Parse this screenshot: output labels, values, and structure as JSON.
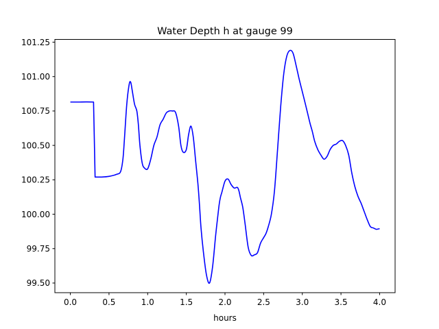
{
  "chart_data": {
    "type": "line",
    "title": "Water Depth h at gauge 99",
    "xlabel": "hours",
    "ylabel": "",
    "xlim": [
      -0.2,
      4.2
    ],
    "ylim": [
      99.43,
      101.27
    ],
    "xticks": [
      0.0,
      0.5,
      1.0,
      1.5,
      2.0,
      2.5,
      3.0,
      3.5,
      4.0
    ],
    "xtick_labels": [
      "0.0",
      "0.5",
      "1.0",
      "1.5",
      "2.0",
      "2.5",
      "3.0",
      "3.5",
      "4.0"
    ],
    "yticks": [
      99.5,
      99.75,
      100.0,
      100.25,
      100.5,
      100.75,
      101.0,
      101.25
    ],
    "ytick_labels": [
      "99.50",
      "99.75",
      "100.00",
      "100.25",
      "100.50",
      "100.75",
      "101.00",
      "101.25"
    ],
    "grid": false,
    "legend": "none",
    "series": [
      {
        "color": "#0000ff",
        "x": [
          0.0,
          0.1,
          0.2,
          0.3,
          0.31,
          0.32,
          0.4,
          0.5,
          0.6,
          0.65,
          0.68,
          0.7,
          0.73,
          0.76,
          0.78,
          0.8,
          0.83,
          0.86,
          0.88,
          0.9,
          0.93,
          0.96,
          1.0,
          1.04,
          1.08,
          1.12,
          1.16,
          1.2,
          1.24,
          1.28,
          1.32,
          1.36,
          1.4,
          1.43,
          1.46,
          1.5,
          1.53,
          1.56,
          1.59,
          1.62,
          1.65,
          1.67,
          1.69,
          1.72,
          1.76,
          1.8,
          1.84,
          1.88,
          1.92,
          1.94,
          1.96,
          2.0,
          2.04,
          2.08,
          2.12,
          2.16,
          2.18,
          2.2,
          2.23,
          2.26,
          2.3,
          2.34,
          2.38,
          2.42,
          2.46,
          2.5,
          2.53,
          2.56,
          2.6,
          2.64,
          2.68,
          2.72,
          2.76,
          2.8,
          2.84,
          2.88,
          2.92,
          2.96,
          3.0,
          3.04,
          3.07,
          3.1,
          3.13,
          3.16,
          3.2,
          3.24,
          3.28,
          3.32,
          3.36,
          3.4,
          3.44,
          3.48,
          3.52,
          3.56,
          3.6,
          3.64,
          3.68,
          3.72,
          3.76,
          3.8,
          3.84,
          3.88,
          3.92,
          3.96,
          4.0
        ],
        "y": [
          100.815,
          100.815,
          100.816,
          100.815,
          100.55,
          100.27,
          100.27,
          100.275,
          100.29,
          100.31,
          100.4,
          100.55,
          100.8,
          100.94,
          100.96,
          100.9,
          100.8,
          100.75,
          100.65,
          100.5,
          100.37,
          100.335,
          100.33,
          100.4,
          100.5,
          100.56,
          100.65,
          100.69,
          100.735,
          100.75,
          100.75,
          100.74,
          100.64,
          100.5,
          100.45,
          100.47,
          100.58,
          100.64,
          100.56,
          100.39,
          100.22,
          100.07,
          99.9,
          99.73,
          99.56,
          99.5,
          99.62,
          99.85,
          100.05,
          100.12,
          100.16,
          100.24,
          100.255,
          100.215,
          100.19,
          100.195,
          100.17,
          100.12,
          100.05,
          99.93,
          99.76,
          99.7,
          99.705,
          99.72,
          99.79,
          99.83,
          99.86,
          99.91,
          100.0,
          100.17,
          100.47,
          100.78,
          101.02,
          101.15,
          101.19,
          101.17,
          101.08,
          100.98,
          100.89,
          100.8,
          100.73,
          100.66,
          100.6,
          100.53,
          100.47,
          100.43,
          100.4,
          100.42,
          100.47,
          100.5,
          100.51,
          100.53,
          100.535,
          100.5,
          100.43,
          100.3,
          100.2,
          100.13,
          100.08,
          100.02,
          99.96,
          99.91,
          99.9,
          99.89,
          99.895
        ]
      }
    ]
  }
}
